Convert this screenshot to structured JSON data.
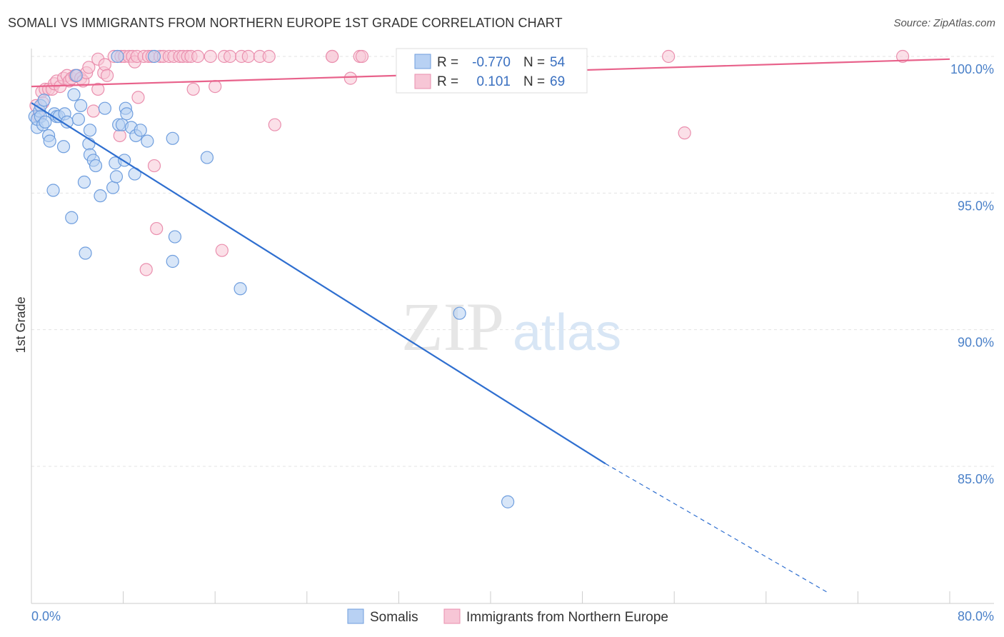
{
  "header": {
    "title": "SOMALI VS IMMIGRANTS FROM NORTHERN EUROPE 1ST GRADE CORRELATION CHART",
    "source": "Source: ZipAtlas.com"
  },
  "watermark": {
    "zip": "ZIP",
    "atlas": "atlas"
  },
  "colors": {
    "blue_fill": "#b8d1f3",
    "blue_stroke": "#6f9ede",
    "blue_line": "#2f6fd0",
    "pink_fill": "#f7c6d6",
    "pink_stroke": "#ea8fae",
    "pink_line": "#e8628b",
    "grid": "#e3e3e3",
    "tick_label": "#4a80c8"
  },
  "chart_data": {
    "type": "scatter",
    "title": "SOMALI VS IMMIGRANTS FROM NORTHERN EUROPE 1ST GRADE CORRELATION CHART",
    "xlabel": "",
    "ylabel": "1st Grade",
    "xlim": [
      0,
      80
    ],
    "ylim": [
      80.5,
      100.5
    ],
    "x_tick_labels": [
      "0.0%",
      "80.0%"
    ],
    "y_ticks": [
      {
        "value": 100,
        "label": "100.0%"
      },
      {
        "value": 95,
        "label": "95.0%"
      },
      {
        "value": 90,
        "label": "90.0%"
      },
      {
        "value": 85,
        "label": "85.0%"
      }
    ],
    "legend": {
      "r_label": "R =",
      "n_label": "N =",
      "rows": [
        {
          "series": "Somalis",
          "r": "-0.770",
          "n": "54"
        },
        {
          "series": "Immigrants from Northern Europe",
          "r": "0.101",
          "n": "69"
        }
      ]
    },
    "series": [
      {
        "name": "Somalis",
        "color": "blue",
        "trend": {
          "x0": 0,
          "y0": 98.3,
          "x1": 50,
          "y1": 85.1,
          "dash_to_x": 69.5,
          "dash_to_y": 80.35
        },
        "points": [
          [
            0.3,
            97.8
          ],
          [
            0.5,
            97.4
          ],
          [
            0.5,
            97.7
          ],
          [
            0.7,
            98.0
          ],
          [
            0.8,
            98.2
          ],
          [
            0.8,
            97.8
          ],
          [
            1.0,
            97.5
          ],
          [
            1.1,
            98.4
          ],
          [
            1.2,
            97.6
          ],
          [
            1.5,
            97.1
          ],
          [
            1.6,
            96.9
          ],
          [
            1.9,
            95.1
          ],
          [
            2.0,
            97.9
          ],
          [
            2.2,
            97.8
          ],
          [
            2.4,
            97.8
          ],
          [
            2.8,
            96.7
          ],
          [
            2.9,
            97.9
          ],
          [
            3.1,
            97.6
          ],
          [
            3.5,
            94.1
          ],
          [
            3.7,
            98.6
          ],
          [
            3.9,
            99.3
          ],
          [
            4.1,
            97.7
          ],
          [
            4.3,
            98.2
          ],
          [
            4.6,
            95.4
          ],
          [
            4.7,
            92.8
          ],
          [
            5.0,
            96.8
          ],
          [
            5.1,
            97.3
          ],
          [
            5.1,
            96.4
          ],
          [
            5.4,
            96.2
          ],
          [
            5.6,
            96.0
          ],
          [
            6.0,
            94.9
          ],
          [
            7.5,
            100.0
          ],
          [
            6.4,
            98.1
          ],
          [
            7.1,
            95.2
          ],
          [
            7.3,
            96.1
          ],
          [
            7.4,
            95.6
          ],
          [
            7.6,
            97.5
          ],
          [
            7.9,
            97.5
          ],
          [
            8.1,
            96.2
          ],
          [
            8.2,
            98.1
          ],
          [
            8.3,
            97.9
          ],
          [
            8.7,
            97.4
          ],
          [
            9.0,
            95.7
          ],
          [
            9.1,
            97.1
          ],
          [
            9.5,
            97.3
          ],
          [
            10.1,
            96.9
          ],
          [
            10.7,
            100.0
          ],
          [
            12.3,
            97.0
          ],
          [
            12.3,
            92.5
          ],
          [
            12.5,
            93.4
          ],
          [
            15.3,
            96.3
          ],
          [
            18.2,
            91.5
          ],
          [
            37.3,
            90.6
          ],
          [
            41.5,
            83.7
          ]
        ]
      },
      {
        "name": "Immigrants from Northern Europe",
        "color": "pink",
        "trend": {
          "x0": 0,
          "y0": 98.9,
          "x1": 80,
          "y1": 99.9
        },
        "points": [
          [
            0.4,
            98.2
          ],
          [
            0.6,
            97.8
          ],
          [
            0.9,
            98.7
          ],
          [
            1.0,
            98.3
          ],
          [
            1.2,
            98.8
          ],
          [
            1.5,
            98.8
          ],
          [
            1.8,
            98.8
          ],
          [
            2.0,
            99.0
          ],
          [
            2.2,
            99.1
          ],
          [
            2.5,
            98.9
          ],
          [
            2.8,
            99.2
          ],
          [
            3.1,
            99.3
          ],
          [
            3.3,
            99.1
          ],
          [
            3.5,
            99.2
          ],
          [
            3.8,
            99.3
          ],
          [
            4.0,
            99.3
          ],
          [
            4.3,
            99.2
          ],
          [
            4.5,
            99.1
          ],
          [
            4.8,
            99.4
          ],
          [
            5.0,
            99.6
          ],
          [
            5.4,
            98.0
          ],
          [
            5.8,
            99.9
          ],
          [
            5.8,
            98.8
          ],
          [
            6.3,
            99.4
          ],
          [
            6.4,
            99.7
          ],
          [
            6.6,
            99.3
          ],
          [
            7.2,
            100.0
          ],
          [
            7.7,
            97.1
          ],
          [
            7.8,
            100.0
          ],
          [
            8.1,
            100.0
          ],
          [
            8.5,
            100.0
          ],
          [
            8.8,
            100.0
          ],
          [
            9.0,
            99.8
          ],
          [
            9.2,
            100.0
          ],
          [
            9.3,
            98.5
          ],
          [
            9.8,
            100.0
          ],
          [
            10.2,
            100.0
          ],
          [
            10.5,
            100.0
          ],
          [
            10.7,
            96.0
          ],
          [
            10.9,
            93.7
          ],
          [
            10.0,
            92.2
          ],
          [
            11.2,
            100.0
          ],
          [
            11.5,
            100.0
          ],
          [
            12.0,
            100.0
          ],
          [
            12.4,
            100.0
          ],
          [
            12.9,
            100.0
          ],
          [
            13.2,
            100.0
          ],
          [
            13.6,
            100.0
          ],
          [
            13.9,
            100.0
          ],
          [
            14.1,
            98.8
          ],
          [
            14.5,
            100.0
          ],
          [
            15.6,
            100.0
          ],
          [
            16.0,
            98.9
          ],
          [
            16.8,
            100.0
          ],
          [
            16.6,
            92.9
          ],
          [
            17.3,
            100.0
          ],
          [
            18.3,
            100.0
          ],
          [
            18.9,
            100.0
          ],
          [
            19.9,
            100.0
          ],
          [
            20.7,
            100.0
          ],
          [
            21.2,
            97.5
          ],
          [
            26.2,
            100.0
          ],
          [
            26.2,
            100.0
          ],
          [
            27.8,
            99.2
          ],
          [
            28.6,
            100.0
          ],
          [
            28.8,
            100.0
          ],
          [
            55.5,
            100.0
          ],
          [
            56.9,
            97.2
          ],
          [
            75.9,
            100.0
          ]
        ]
      }
    ]
  }
}
